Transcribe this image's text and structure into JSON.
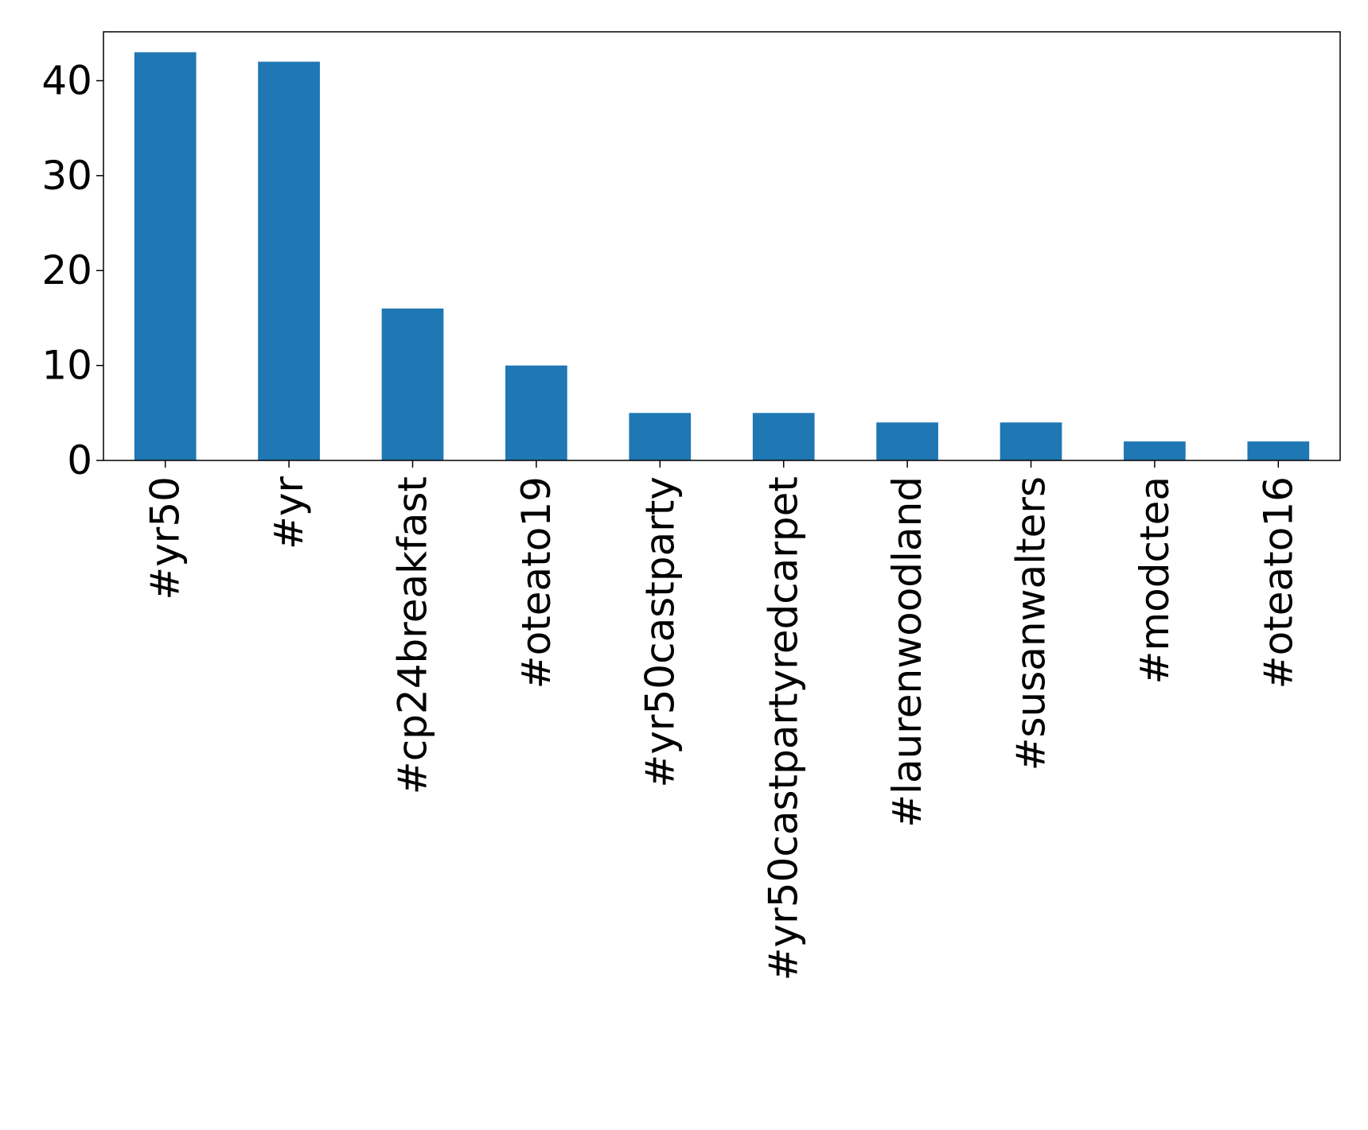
{
  "chart_data": {
    "type": "bar",
    "title": "",
    "xlabel": "",
    "ylabel": "",
    "categories": [
      "#yr50",
      "#yr",
      "#cp24breakfast",
      "#oteato19",
      "#yr50castparty",
      "#yr50castpartyredcarpet",
      "#laurenwoodland",
      "#susanwalters",
      "#modctea",
      "#oteato16"
    ],
    "values": [
      43,
      42,
      16,
      10,
      5,
      5,
      4,
      4,
      2,
      2
    ],
    "ylim": [
      0,
      45.15
    ],
    "yticks": [
      0,
      10,
      20,
      30,
      40
    ],
    "grid": false,
    "legend": "none",
    "bar_color": "#1f77b4"
  }
}
